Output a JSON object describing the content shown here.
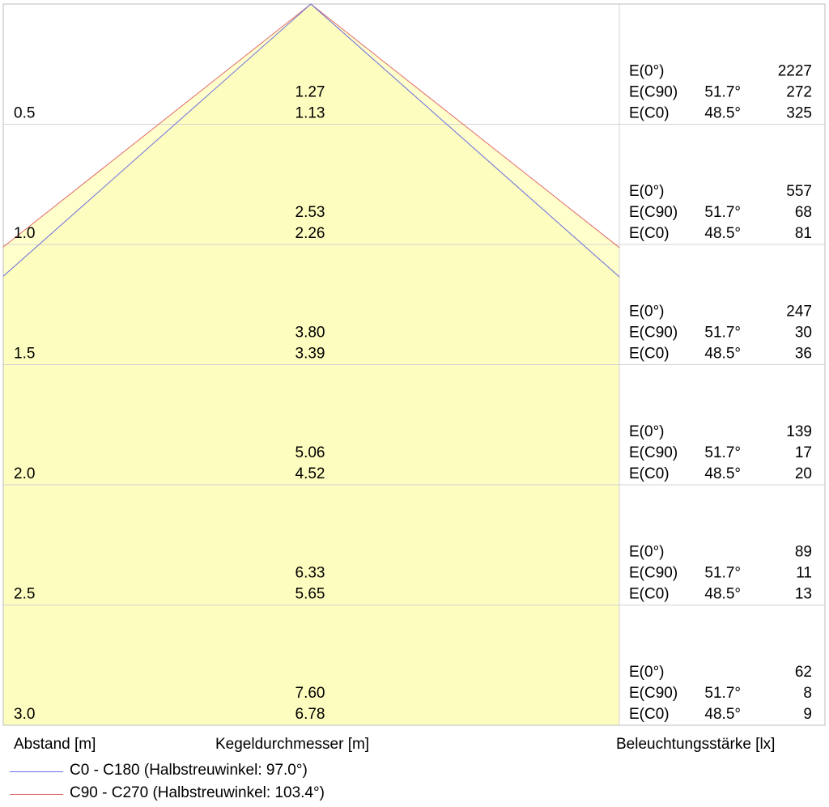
{
  "chart_data": {
    "type": "table",
    "xlabel": "Kegeldurchmesser [m]",
    "ylabel": "Abstand [m]",
    "rlabel": "Beleuchtungsstärke [lx]",
    "rows": [
      {
        "distance": "0.5",
        "d_c90": "1.27",
        "d_c0": "1.13",
        "e0": "2227",
        "e_c90": "272",
        "e_c0": "325"
      },
      {
        "distance": "1.0",
        "d_c90": "2.53",
        "d_c0": "2.26",
        "e0": "557",
        "e_c90": "68",
        "e_c0": "81"
      },
      {
        "distance": "1.5",
        "d_c90": "3.80",
        "d_c0": "3.39",
        "e0": "247",
        "e_c90": "30",
        "e_c0": "36"
      },
      {
        "distance": "2.0",
        "d_c90": "5.06",
        "d_c0": "4.52",
        "e0": "139",
        "e_c90": "17",
        "e_c0": "20"
      },
      {
        "distance": "2.5",
        "d_c90": "6.33",
        "d_c0": "5.65",
        "e0": "89",
        "e_c90": "11",
        "e_c0": "13"
      },
      {
        "distance": "3.0",
        "d_c90": "7.60",
        "d_c0": "6.78",
        "e0": "62",
        "e_c90": "8",
        "e_c0": "9"
      }
    ],
    "row_labels": {
      "e0": "E(0°)",
      "e_c90": "E(C90)",
      "e_c0": "E(C0)"
    },
    "angle_c90": "51.7°",
    "angle_c0": "48.5°",
    "series": [
      {
        "name": "C0 - C180 (Halbstreuwinkel: 97.0°)",
        "color": "#6a6ae0",
        "half_angle_deg": 97.0
      },
      {
        "name": "C90 - C270 (Halbstreuwinkel: 103.4°)",
        "color": "#e06a6a",
        "half_angle_deg": 103.4
      }
    ],
    "cone_fill_color": "#ffffcc",
    "grid": true
  }
}
